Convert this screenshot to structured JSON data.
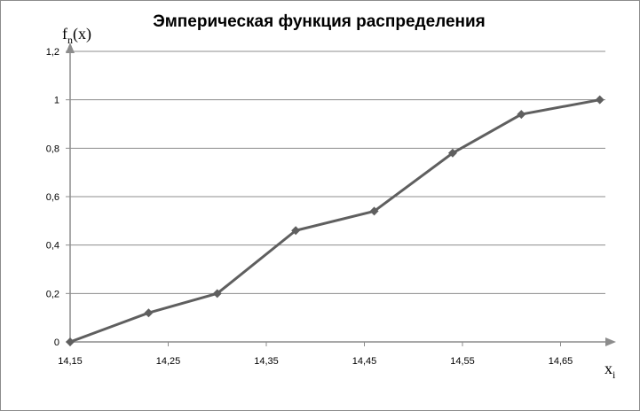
{
  "chart_data": {
    "type": "line",
    "title": "Эмперическая функция распределения",
    "ylabel_main": "f",
    "ylabel_sub": "n",
    "ylabel_arg": "(x)",
    "xlabel_main": "x",
    "xlabel_sub": "i",
    "x": [
      14.15,
      14.23,
      14.3,
      14.38,
      14.46,
      14.54,
      14.61,
      14.69
    ],
    "y": [
      0,
      0.12,
      0.2,
      0.46,
      0.54,
      0.78,
      0.94,
      1.0
    ],
    "xticks": [
      "14,15",
      "14,25",
      "14,35",
      "14,45",
      "14,55",
      "14,65"
    ],
    "xtick_values": [
      14.15,
      14.25,
      14.35,
      14.45,
      14.55,
      14.65
    ],
    "yticks": [
      "0",
      "0,2",
      "0,4",
      "0,6",
      "0,8",
      "1",
      "1,2"
    ],
    "ytick_values": [
      0,
      0.2,
      0.4,
      0.6,
      0.8,
      1.0,
      1.2
    ],
    "xlim": [
      14.15,
      14.7
    ],
    "ylim": [
      0,
      1.2
    ],
    "grid": "horizontal",
    "legend": "none",
    "colors": {
      "line": "#5f5f5f",
      "grid": "#8c8c8c",
      "axis": "#8c8c8c"
    }
  }
}
